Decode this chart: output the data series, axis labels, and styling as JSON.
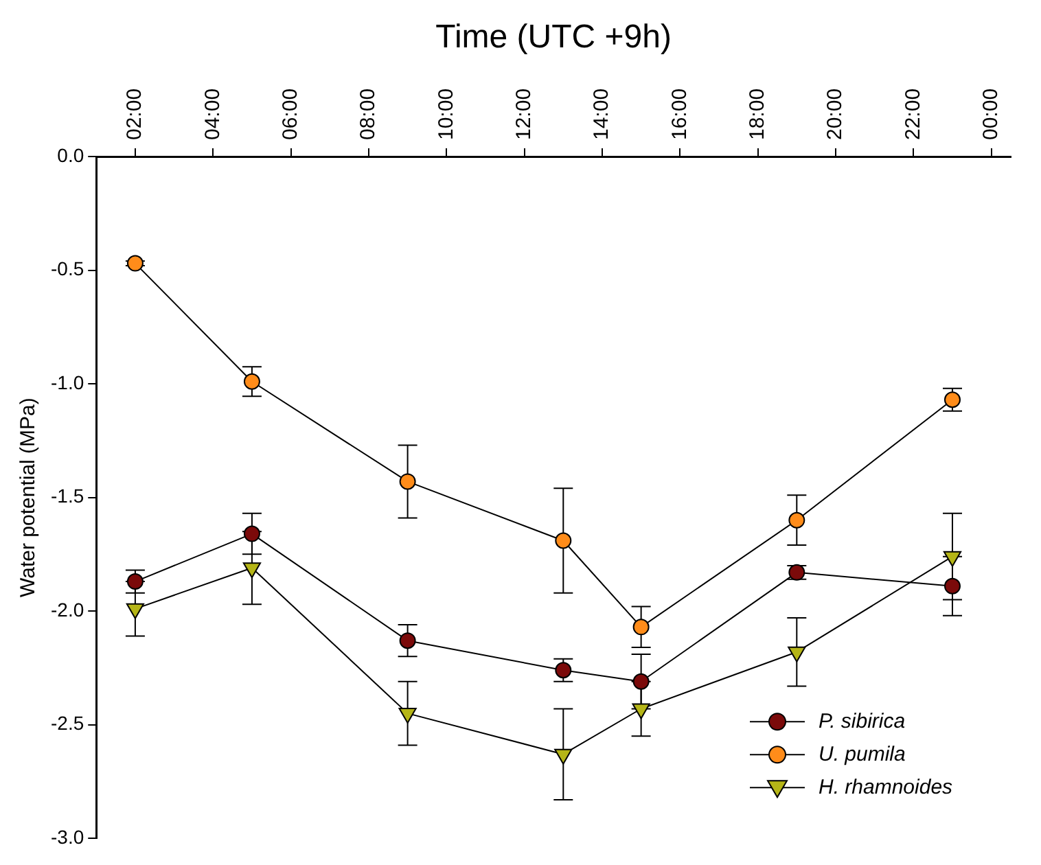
{
  "chart_data": {
    "type": "line",
    "xlabel": "Time (UTC +9h)",
    "ylabel": "Water potential (MPa)",
    "x": [
      2,
      5,
      9,
      13,
      15,
      19,
      23
    ],
    "xlim": [
      1,
      24.5
    ],
    "xticks": [
      {
        "value": 2,
        "label": "02:00"
      },
      {
        "value": 4,
        "label": "04:00"
      },
      {
        "value": 6,
        "label": "06:00"
      },
      {
        "value": 8,
        "label": "08:00"
      },
      {
        "value": 10,
        "label": "10:00"
      },
      {
        "value": 12,
        "label": "12:00"
      },
      {
        "value": 14,
        "label": "14:00"
      },
      {
        "value": 16,
        "label": "16:00"
      },
      {
        "value": 18,
        "label": "18:00"
      },
      {
        "value": 20,
        "label": "20:00"
      },
      {
        "value": 22,
        "label": "22:00"
      },
      {
        "value": 24,
        "label": "00:00"
      }
    ],
    "ylim": [
      -3,
      0
    ],
    "yticks": [
      {
        "value": -3,
        "label": "-3.0"
      },
      {
        "value": -2.5,
        "label": "-2.5"
      },
      {
        "value": -2,
        "label": "-2.0"
      },
      {
        "value": -1.5,
        "label": "-1.5"
      },
      {
        "value": -1,
        "label": "-1.0"
      },
      {
        "value": -0.5,
        "label": "-0.5"
      },
      {
        "value": 0,
        "label": "0.0"
      }
    ],
    "grid": false,
    "legend": "bottom right",
    "line_style": "solid",
    "series": [
      {
        "name": "P. sibirica",
        "color": "#7b0a0a",
        "marker": "circle",
        "values": [
          -1.87,
          -1.66,
          -2.13,
          -2.26,
          -2.31,
          -1.83,
          -1.89
        ],
        "errors": [
          0.05,
          0.09,
          0.07,
          0.05,
          0.12,
          0.03,
          0.13
        ]
      },
      {
        "name": "U. pumila",
        "color": "#ff8c1a",
        "marker": "circle",
        "values": [
          -0.47,
          -0.99,
          -1.43,
          -1.69,
          -2.07,
          -1.6,
          -1.07
        ],
        "errors": [
          0.01,
          0.065,
          0.16,
          0.23,
          0.09,
          0.11,
          0.05
        ]
      },
      {
        "name": "H. rhamnoides",
        "color": "#b5b517",
        "marker": "triangle",
        "values": [
          -1.99,
          -1.81,
          -2.45,
          -2.63,
          -2.43,
          -2.18,
          -1.76
        ],
        "errors": [
          0.12,
          0.16,
          0.14,
          0.2,
          0.12,
          0.15,
          0.19
        ]
      }
    ]
  }
}
